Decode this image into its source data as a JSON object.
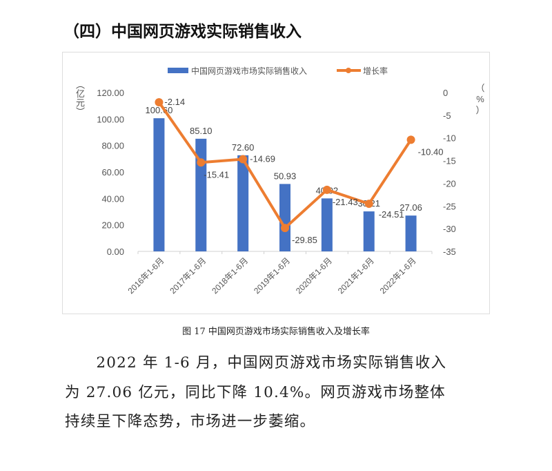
{
  "title": "（四）中国网页游戏实际销售收入",
  "chart_data": {
    "type": "bar+line",
    "categories": [
      "2016年1-6月",
      "2017年1-6月",
      "2018年1-6月",
      "2019年1-6月",
      "2020年1-6月",
      "2021年1-6月",
      "2022年1-6月"
    ],
    "series": [
      {
        "name": "中国网页游戏市场实际销售收入",
        "type": "bar",
        "axis": "left",
        "color": "#4472C4",
        "values": [
          100.6,
          85.1,
          72.6,
          50.93,
          40.02,
          30.21,
          27.06
        ],
        "labels": [
          "100.60",
          "85.10",
          "72.60",
          "50.93",
          "40.02",
          "30.21",
          "27.06"
        ]
      },
      {
        "name": "增长率",
        "type": "line",
        "axis": "right",
        "color": "#ED7D31",
        "values": [
          -2.14,
          -15.41,
          -14.69,
          -29.85,
          -21.43,
          -24.51,
          -10.4
        ],
        "labels": [
          "-2.14",
          "-15.41",
          "-14.69",
          "-29.85",
          "-21.43",
          "-24.51",
          "-10.40"
        ]
      }
    ],
    "left_axis": {
      "label": "（亿元）",
      "label_chars": [
        "（",
        "亿",
        "元",
        "）"
      ],
      "range": [
        0,
        120
      ],
      "ticks": [
        "0.00",
        "20.00",
        "40.00",
        "60.00",
        "80.00",
        "100.00",
        "120.00"
      ]
    },
    "right_axis": {
      "label": "（%）",
      "label_chars": [
        "（",
        "%",
        "）"
      ],
      "range": [
        -35,
        0
      ],
      "ticks": [
        "-35",
        "-30",
        "-25",
        "-20",
        "-15",
        "-10",
        "-5",
        "0"
      ]
    },
    "legend": "top",
    "grid": false
  },
  "caption": "图 17  中国网页游戏市场实际销售收入及增长率",
  "body": {
    "lines": [
      "　　2022 年 1-6 月，中国网页游戏市场实际销售收入",
      "为 27.06 亿元，同比下降 10.4%。网页游戏市场整体",
      "持续呈下降态势，市场进一步萎缩。"
    ]
  }
}
